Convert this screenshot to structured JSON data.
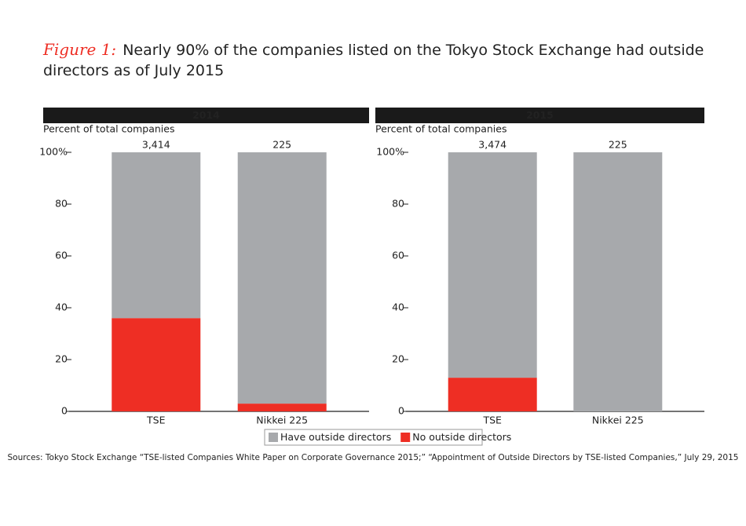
{
  "figure_label": "Figure 1:",
  "title": "Nearly 90% of the companies listed on the Tokyo Stock Exchange had outside directors as of July 2015",
  "source": "Sources: Tokyo Stock Exchange “TSE-listed Companies White Paper on Corporate Governance 2015;” “Appointment of Outside Directors by TSE-listed Companies,” July 29, 2015",
  "chart_data": [
    {
      "type": "bar",
      "stacked": true,
      "title": "2014",
      "y_label": "Percent of total companies",
      "categories": [
        "TSE",
        "Nikkei 225"
      ],
      "annotations": [
        "3,414",
        "225"
      ],
      "series": [
        {
          "name": "Have outside directors",
          "color": "#a7a9ac",
          "values": [
            64,
            97
          ]
        },
        {
          "name": "No outside directors",
          "color": "#ee2e24",
          "values": [
            36,
            3
          ]
        }
      ],
      "ylim": [
        0,
        100
      ],
      "yticks": [
        0,
        20,
        40,
        60,
        80,
        {
          "value": 100,
          "label": "100%"
        }
      ]
    },
    {
      "type": "bar",
      "stacked": true,
      "title": "2015",
      "y_label": "Percent of total companies",
      "categories": [
        "TSE",
        "Nikkei 225"
      ],
      "annotations": [
        "3,474",
        "225"
      ],
      "series": [
        {
          "color": "#a7a9ac",
          "values": [
            87,
            100
          ]
        },
        {
          "color": "#ee2e24",
          "values": [
            13,
            0
          ]
        }
      ],
      "ylim": [
        0,
        100
      ],
      "yticks": [
        0,
        20,
        40,
        60,
        80,
        {
          "value": 100,
          "label": "100%"
        }
      ]
    }
  ]
}
